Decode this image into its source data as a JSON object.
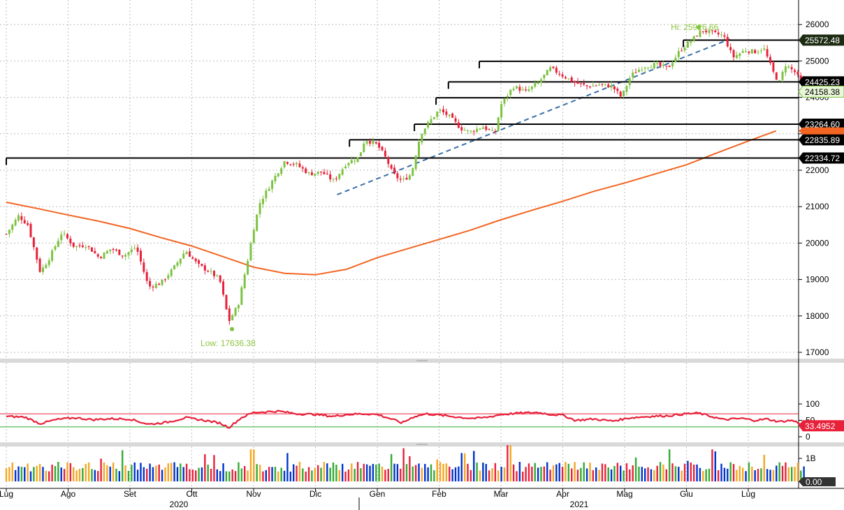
{
  "chart_data": [
    {
      "type": "candlestick",
      "ylim": [
        16800,
        26500
      ],
      "yticks": [
        17000,
        18000,
        19000,
        20000,
        21000,
        22000,
        23000,
        24000,
        25000,
        26000
      ],
      "grid": true,
      "x_months": [
        "Lug",
        "Ago",
        "Set",
        "Ott",
        "Nov",
        "Dic",
        "Gen",
        "Feb",
        "Mar",
        "Apr",
        "Mag",
        "Giu",
        "Lug"
      ],
      "x_years": [
        "2020",
        "2021"
      ],
      "annotations": {
        "high": {
          "label": "Hi: 25926.66",
          "value": 25926.66
        },
        "low": {
          "label": "Low: 17636.38",
          "value": 17636.38
        }
      },
      "price_tags": [
        {
          "label": "25572.48",
          "value": 25572.48,
          "style": "dark-green"
        },
        {
          "label": "24425.23",
          "value": 24425.23,
          "style": "black"
        },
        {
          "label": "24158.38",
          "value": 24158.38,
          "style": "green"
        },
        {
          "label": "23264.60",
          "value": 23264.6,
          "style": "black"
        },
        {
          "label": "22835.89",
          "value": 22835.89,
          "style": "black"
        },
        {
          "label": "22334.72",
          "value": 22334.72,
          "style": "black"
        }
      ],
      "horizontal_levels": [
        {
          "value": 25572.48,
          "from_month": 10.95
        },
        {
          "value": 24990,
          "from_month": 7.65
        },
        {
          "value": 24425.23,
          "from_month": 7.15
        },
        {
          "value": 23990,
          "from_month": 6.95
        },
        {
          "value": 23264.6,
          "from_month": 6.6
        },
        {
          "value": 22835.89,
          "from_month": 5.55
        },
        {
          "value": 22334.72,
          "from_month": 0.0
        }
      ],
      "trendline": {
        "from": [
          5.35,
          21330
        ],
        "to": [
          11.7,
          25600
        ],
        "style": "dashed",
        "color": "#3a6fa8"
      },
      "moving_average": {
        "color": "#f26522",
        "points": [
          [
            0.0,
            21120
          ],
          [
            0.5,
            20950
          ],
          [
            1.0,
            20770
          ],
          [
            1.5,
            20600
          ],
          [
            2.0,
            20400
          ],
          [
            2.5,
            20150
          ],
          [
            3.0,
            19920
          ],
          [
            3.5,
            19630
          ],
          [
            4.0,
            19340
          ],
          [
            4.5,
            19170
          ],
          [
            5.0,
            19130
          ],
          [
            5.5,
            19280
          ],
          [
            6.0,
            19600
          ],
          [
            6.5,
            19850
          ],
          [
            7.0,
            20100
          ],
          [
            7.5,
            20350
          ],
          [
            8.0,
            20640
          ],
          [
            8.5,
            20900
          ],
          [
            9.0,
            21150
          ],
          [
            9.5,
            21420
          ],
          [
            10.0,
            21650
          ],
          [
            10.5,
            21900
          ],
          [
            11.0,
            22150
          ],
          [
            11.5,
            22480
          ],
          [
            12.0,
            22800
          ],
          [
            12.45,
            23080
          ]
        ]
      },
      "price_path": [
        [
          0.0,
          20250
        ],
        [
          0.2,
          20750
        ],
        [
          0.35,
          20500
        ],
        [
          0.55,
          19200
        ],
        [
          0.7,
          19600
        ],
        [
          0.9,
          20300
        ],
        [
          1.1,
          19900
        ],
        [
          1.3,
          19950
        ],
        [
          1.5,
          19600
        ],
        [
          1.7,
          19850
        ],
        [
          1.9,
          19650
        ],
        [
          2.1,
          19900
        ],
        [
          2.3,
          18800
        ],
        [
          2.5,
          18900
        ],
        [
          2.7,
          19300
        ],
        [
          2.9,
          19800
        ],
        [
          3.1,
          19400
        ],
        [
          3.3,
          19200
        ],
        [
          3.45,
          19000
        ],
        [
          3.6,
          17850
        ],
        [
          3.75,
          18300
        ],
        [
          3.9,
          19500
        ],
        [
          4.0,
          20400
        ],
        [
          4.1,
          21100
        ],
        [
          4.3,
          21700
        ],
        [
          4.5,
          22250
        ],
        [
          4.7,
          22150
        ],
        [
          4.9,
          21900
        ],
        [
          5.1,
          21950
        ],
        [
          5.3,
          21700
        ],
        [
          5.5,
          22200
        ],
        [
          5.7,
          22350
        ],
        [
          5.8,
          22850
        ],
        [
          6.0,
          22700
        ],
        [
          6.15,
          22300
        ],
        [
          6.25,
          21900
        ],
        [
          6.4,
          21700
        ],
        [
          6.55,
          21900
        ],
        [
          6.7,
          23000
        ],
        [
          6.85,
          23350
        ],
        [
          7.0,
          23650
        ],
        [
          7.15,
          23500
        ],
        [
          7.35,
          23150
        ],
        [
          7.5,
          23050
        ],
        [
          7.7,
          23200
        ],
        [
          7.9,
          23000
        ],
        [
          8.0,
          23800
        ],
        [
          8.2,
          24300
        ],
        [
          8.4,
          24150
        ],
        [
          8.6,
          24400
        ],
        [
          8.8,
          24800
        ],
        [
          9.0,
          24600
        ],
        [
          9.2,
          24400
        ],
        [
          9.4,
          24300
        ],
        [
          9.6,
          24350
        ],
        [
          9.8,
          24300
        ],
        [
          9.95,
          24000
        ],
        [
          10.1,
          24600
        ],
        [
          10.3,
          24850
        ],
        [
          10.5,
          24900
        ],
        [
          10.7,
          24800
        ],
        [
          10.9,
          25300
        ],
        [
          11.1,
          25600
        ],
        [
          11.25,
          25850
        ],
        [
          11.45,
          25750
        ],
        [
          11.6,
          25700
        ],
        [
          11.75,
          25100
        ],
        [
          11.95,
          25300
        ],
        [
          12.1,
          25250
        ],
        [
          12.25,
          25350
        ],
        [
          12.4,
          24700
        ],
        [
          12.5,
          24400
        ],
        [
          12.6,
          24900
        ],
        [
          12.75,
          24700
        ],
        [
          12.85,
          24450
        ],
        [
          12.9,
          24158
        ]
      ]
    },
    {
      "type": "line",
      "ylim": [
        0,
        100
      ],
      "yticks": [
        0,
        50,
        100
      ],
      "overbought": 70,
      "oversold": 30,
      "last_label": "33.4952",
      "last_value": 33.4952,
      "color": "#e8213a",
      "points": [
        [
          0.0,
          62
        ],
        [
          0.3,
          60
        ],
        [
          0.55,
          40
        ],
        [
          0.8,
          52
        ],
        [
          1.1,
          58
        ],
        [
          1.4,
          52
        ],
        [
          1.7,
          55
        ],
        [
          2.0,
          54
        ],
        [
          2.3,
          38
        ],
        [
          2.6,
          44
        ],
        [
          2.9,
          58
        ],
        [
          3.2,
          50
        ],
        [
          3.45,
          42
        ],
        [
          3.6,
          28
        ],
        [
          3.8,
          58
        ],
        [
          4.0,
          74
        ],
        [
          4.4,
          78
        ],
        [
          4.7,
          70
        ],
        [
          5.0,
          68
        ],
        [
          5.3,
          62
        ],
        [
          5.5,
          68
        ],
        [
          5.8,
          70
        ],
        [
          6.0,
          68
        ],
        [
          6.2,
          56
        ],
        [
          6.4,
          42
        ],
        [
          6.6,
          62
        ],
        [
          6.8,
          70
        ],
        [
          7.1,
          64
        ],
        [
          7.4,
          58
        ],
        [
          7.6,
          56
        ],
        [
          7.8,
          60
        ],
        [
          8.0,
          68
        ],
        [
          8.3,
          72
        ],
        [
          8.6,
          74
        ],
        [
          8.8,
          68
        ],
        [
          9.0,
          66
        ],
        [
          9.2,
          50
        ],
        [
          9.5,
          54
        ],
        [
          9.8,
          48
        ],
        [
          10.1,
          58
        ],
        [
          10.4,
          62
        ],
        [
          10.7,
          64
        ],
        [
          11.0,
          70
        ],
        [
          11.2,
          72
        ],
        [
          11.4,
          62
        ],
        [
          11.6,
          52
        ],
        [
          11.9,
          56
        ],
        [
          12.1,
          50
        ],
        [
          12.3,
          54
        ],
        [
          12.5,
          46
        ],
        [
          12.7,
          50
        ],
        [
          12.85,
          40
        ],
        [
          12.9,
          33.5
        ]
      ]
    },
    {
      "type": "bar",
      "yticks_labels": [
        "1B",
        "0.00"
      ],
      "last_label": "0.00",
      "note_colors": [
        "#0033cc",
        "#33aa33",
        "#e8213a",
        "#f5a623"
      ]
    }
  ]
}
